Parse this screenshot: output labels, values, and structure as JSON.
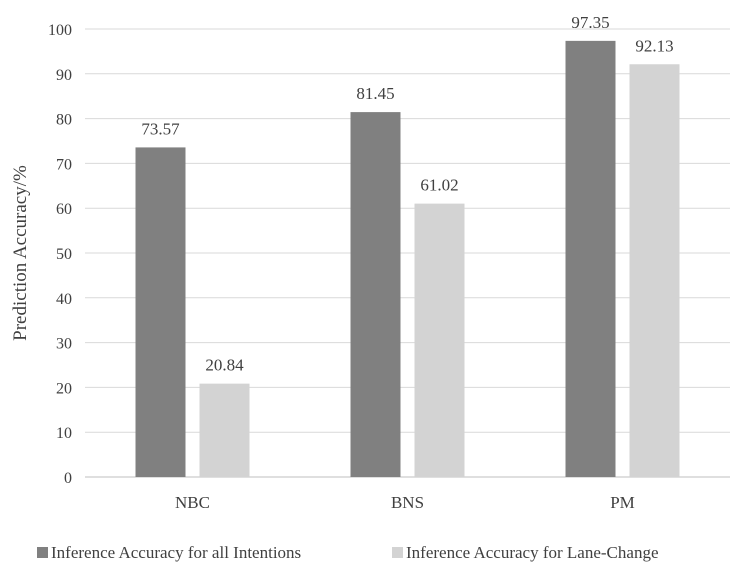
{
  "chart_data": {
    "type": "bar",
    "categories": [
      "NBC",
      "BNS",
      "PM"
    ],
    "series": [
      {
        "name": "Inference Accuracy for all Intentions",
        "values": [
          73.57,
          81.45,
          97.35
        ],
        "color": "#808080"
      },
      {
        "name": "Inference Accuracy for Lane-Change",
        "values": [
          20.84,
          61.02,
          92.13
        ],
        "color": "#d3d3d3"
      }
    ],
    "data_labels": [
      [
        "73.57",
        "81.45",
        "97.35"
      ],
      [
        "20.84",
        "61.02",
        "92.13"
      ]
    ],
    "ylabel": "Prediction Accuracy/%",
    "ylim": [
      0,
      100
    ],
    "yticks": [
      0,
      10,
      20,
      30,
      40,
      50,
      60,
      70,
      80,
      90,
      100
    ],
    "grid": true,
    "legend_position": "bottom"
  }
}
